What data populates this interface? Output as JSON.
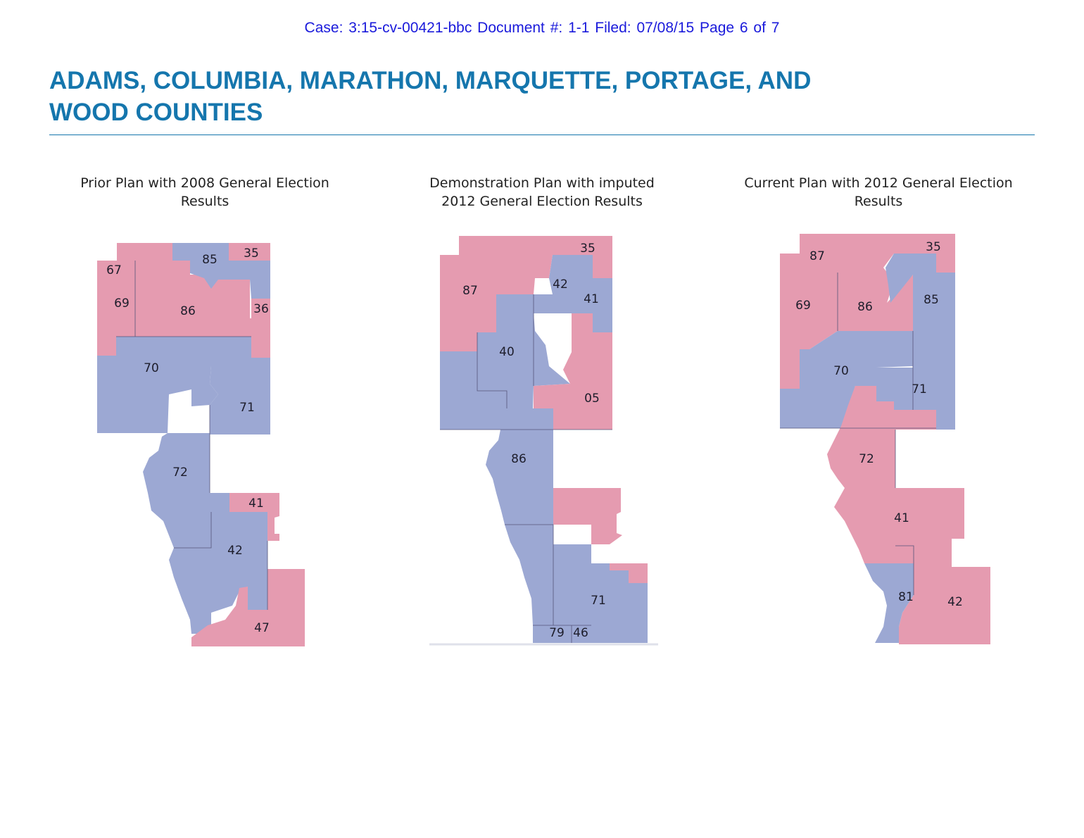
{
  "header": {
    "case_line": "Case: 3:15-cv-00421-bbc   Document #: 1-1   Filed: 07/08/15   Page 6 of 7"
  },
  "title": {
    "line1": "ADAMS, COLUMBIA, MARATHON, MARQUETTE, PORTAGE, AND",
    "line2": "WOOD COUNTIES"
  },
  "colors": {
    "republican": "#e59bb0",
    "democratic": "#9ca8d3",
    "title": "#1576ad",
    "header_link": "#1a1adb"
  },
  "maps": [
    {
      "caption_line1": "Prior Plan with 2008 General Election",
      "caption_line2": "Results",
      "district_labels": [
        "85",
        "35",
        "67",
        "69",
        "86",
        "36",
        "70",
        "71",
        "72",
        "41",
        "42",
        "47"
      ]
    },
    {
      "caption_line1": "Demonstration Plan with imputed",
      "caption_line2": "2012 General Election Results",
      "district_labels": [
        "35",
        "87",
        "42",
        "41",
        "40",
        "05",
        "86",
        "71",
        "79",
        "46"
      ]
    },
    {
      "caption_line1": "Current Plan with 2012 General Election",
      "caption_line2": "Results",
      "district_labels": [
        "87",
        "35",
        "69",
        "86",
        "85",
        "70",
        "71",
        "72",
        "41",
        "81",
        "42"
      ]
    }
  ]
}
